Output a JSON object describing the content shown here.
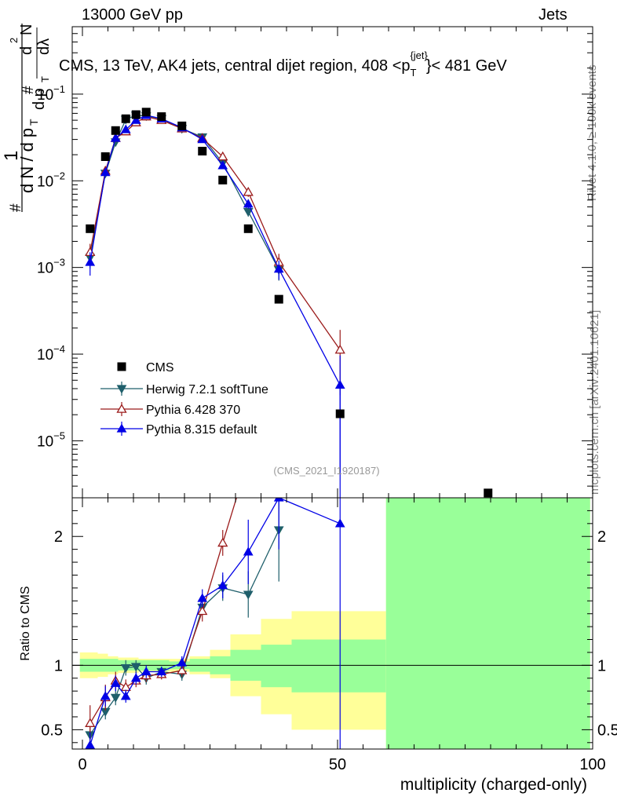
{
  "header": {
    "left": "13000 GeV pp",
    "right": "Jets"
  },
  "side_labels": {
    "rivet": "Rivet 4.1.0, ≥ 100k events",
    "mcplots": "mcplots.cern.ch [arXiv:2401.10621]"
  },
  "chart_data": {
    "type": "scatter",
    "title": "CMS, 13 TeV, AK4 jets, central dijet region, 408 <p",
    "title_sub": "T",
    "title_sup": "{jet}",
    "title_end": "}< 481 GeV",
    "analysis_tag": "(CMS_2021_I1920187)",
    "ylabel_parts": [
      "1",
      "d N / d p",
      "T",
      "#",
      "d p",
      "T",
      "d",
      "2",
      "N",
      "dλ",
      "#"
    ],
    "xlabel": "multiplicity (charged-only)",
    "ratio_ylabel": "Ratio to CMS",
    "xlim": [
      -2,
      100
    ],
    "ylim_log": [
      2.2e-06,
      0.6
    ],
    "ratio_ylim": [
      0.35,
      2.3
    ],
    "x_ticks": [
      0,
      50,
      100
    ],
    "x_tick_labels": [
      "0",
      "50",
      "100"
    ],
    "y_ticks": [
      1e-05,
      0.0001,
      0.001,
      0.01,
      0.1
    ],
    "y_tick_bases": [
      "10",
      "10",
      "10",
      "10",
      "10"
    ],
    "y_tick_exps": [
      "−5",
      "−4",
      "−3",
      "−2",
      "−1"
    ],
    "ratio_ticks": [
      0.5,
      1,
      2
    ],
    "ratio_tick_labels": [
      "0.5",
      "1",
      "2"
    ],
    "ratio_ticks_right": [
      "0.5",
      "1",
      "2"
    ],
    "colors": {
      "data": "#000000",
      "herwig": "#1f5f6b",
      "pythia6": "#9b1b1b",
      "pythia8": "#0000e6",
      "band_inner": "#99ff99",
      "band_outer": "#ffff99"
    },
    "data_series": {
      "name": "CMS",
      "x": [
        1.5,
        4.5,
        6.5,
        8.5,
        10.5,
        12.5,
        15.5,
        19.5,
        23.5,
        27.5,
        32.5,
        38.5,
        50.5,
        79.5
      ],
      "y": [
        0.0028,
        0.019,
        0.038,
        0.052,
        0.058,
        0.062,
        0.055,
        0.043,
        0.022,
        0.0102,
        0.0028,
        0.00043,
        2.05e-05,
        2.5e-06
      ]
    },
    "bands": [
      {
        "x0": -0.5,
        "x1": 3,
        "inner": [
          0.95,
          1.05
        ],
        "outer": [
          0.9,
          1.1
        ]
      },
      {
        "x0": 3,
        "x1": 5,
        "inner": [
          0.95,
          1.05
        ],
        "outer": [
          0.91,
          1.09
        ]
      },
      {
        "x0": 5,
        "x1": 7,
        "inner": [
          0.95,
          1.05
        ],
        "outer": [
          0.93,
          1.07
        ]
      },
      {
        "x0": 7,
        "x1": 9,
        "inner": [
          0.96,
          1.04
        ],
        "outer": [
          0.94,
          1.06
        ]
      },
      {
        "x0": 9,
        "x1": 11,
        "inner": [
          0.96,
          1.04
        ],
        "outer": [
          0.94,
          1.06
        ]
      },
      {
        "x0": 11,
        "x1": 13,
        "inner": [
          0.96,
          1.04
        ],
        "outer": [
          0.95,
          1.05
        ]
      },
      {
        "x0": 13,
        "x1": 17,
        "inner": [
          0.96,
          1.04
        ],
        "outer": [
          0.95,
          1.05
        ]
      },
      {
        "x0": 17,
        "x1": 21,
        "inner": [
          0.97,
          1.03
        ],
        "outer": [
          0.95,
          1.05
        ]
      },
      {
        "x0": 21,
        "x1": 25,
        "inner": [
          0.95,
          1.05
        ],
        "outer": [
          0.93,
          1.07
        ]
      },
      {
        "x0": 25,
        "x1": 29,
        "inner": [
          0.93,
          1.07
        ],
        "outer": [
          0.9,
          1.12
        ]
      },
      {
        "x0": 29,
        "x1": 35,
        "inner": [
          0.88,
          1.12
        ],
        "outer": [
          0.76,
          1.24
        ]
      },
      {
        "x0": 35,
        "x1": 41,
        "inner": [
          0.83,
          1.16
        ],
        "outer": [
          0.62,
          1.36
        ]
      },
      {
        "x0": 41,
        "x1": 59.5,
        "inner": [
          0.79,
          1.2
        ],
        "outer": [
          0.5,
          1.42
        ]
      },
      {
        "x0": 59.5,
        "x1": 99.5,
        "inner": [
          0.35,
          2.3
        ],
        "outer": [
          0.35,
          2.3
        ]
      }
    ],
    "series": [
      {
        "name": "Herwig 7.2.1 softTune",
        "marker": "triangle-down-filled",
        "x": [
          1.5,
          4.5,
          6.5,
          8.5,
          10.5,
          12.5,
          15.5,
          19.5,
          23.5,
          27.5,
          32.5,
          38.5
        ],
        "y": [
          0.0013,
          0.0122,
          0.028,
          0.051,
          0.057,
          0.056,
          0.052,
          0.04,
          0.032,
          0.016,
          0.0044,
          0.00094
        ],
        "yerr": [
          0.25,
          0.06,
          0.04,
          0.03,
          0.02,
          0.02,
          0.02,
          0.03,
          0.04,
          0.06,
          0.12,
          0.25
        ],
        "ratio": [
          0.46,
          0.64,
          0.75,
          0.98,
          0.99,
          0.9,
          0.95,
          0.93,
          1.45,
          1.6,
          1.55,
          2.05
        ],
        "ratio_err": [
          0.12,
          0.06,
          0.06,
          0.06,
          0.05,
          0.05,
          0.04,
          0.05,
          0.06,
          0.1,
          0.18,
          0.4
        ]
      },
      {
        "name": "Pythia 6.428 370",
        "marker": "triangle-up-open",
        "x": [
          1.5,
          4.5,
          6.5,
          8.5,
          10.5,
          12.5,
          15.5,
          19.5,
          23.5,
          27.5,
          32.5,
          38.5,
          50.5
        ],
        "y": [
          0.0015,
          0.013,
          0.031,
          0.037,
          0.047,
          0.055,
          0.05,
          0.04,
          0.031,
          0.019,
          0.0074,
          0.00115,
          0.000112
        ],
        "yerr": [
          0.25,
          0.06,
          0.04,
          0.03,
          0.02,
          0.02,
          0.02,
          0.03,
          0.04,
          0.06,
          0.12,
          0.25,
          0.7
        ],
        "ratio": [
          0.55,
          0.75,
          0.88,
          0.83,
          0.88,
          0.92,
          0.93,
          0.96,
          1.42,
          1.95,
          2.6,
          2.8,
          5.5
        ],
        "ratio_err": [
          0.14,
          0.1,
          0.07,
          0.06,
          0.05,
          0.05,
          0.04,
          0.05,
          0.08,
          0.1,
          0.3,
          0.5,
          1.5
        ]
      },
      {
        "name": "Pythia 8.315 default",
        "marker": "triangle-up-filled",
        "x": [
          1.5,
          4.5,
          6.5,
          8.5,
          10.5,
          12.5,
          15.5,
          19.5,
          23.5,
          27.5,
          32.5,
          38.5,
          50.5
        ],
        "y": [
          0.00115,
          0.0125,
          0.031,
          0.039,
          0.05,
          0.057,
          0.052,
          0.041,
          0.03,
          0.015,
          0.0054,
          0.00096,
          4.4e-05
        ],
        "yerr": [
          0.3,
          0.06,
          0.04,
          0.03,
          0.02,
          0.02,
          0.02,
          0.03,
          0.04,
          0.06,
          0.12,
          0.25,
          1.2
        ],
        "ratio": [
          0.38,
          0.76,
          0.86,
          0.76,
          0.9,
          0.95,
          0.95,
          1.02,
          1.52,
          1.62,
          1.88,
          2.3,
          2.1
        ],
        "ratio_err": [
          0.1,
          0.08,
          0.06,
          0.05,
          0.05,
          0.05,
          0.04,
          0.05,
          0.07,
          0.1,
          0.25,
          0.4,
          1.8
        ]
      }
    ]
  }
}
